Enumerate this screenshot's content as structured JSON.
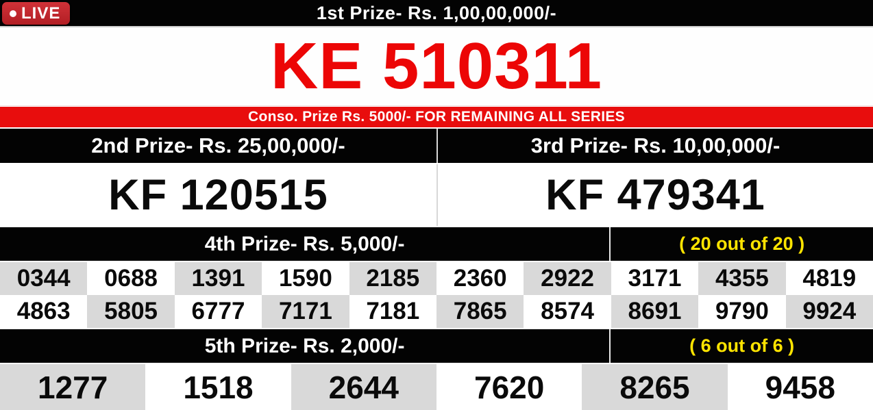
{
  "colors": {
    "black": "#030303",
    "accent_red": "#e80d0d",
    "live_red": "#c5282e",
    "prize_red": "#ec0606",
    "yellow": "#ffe400",
    "cell_gray": "#d9d9d9"
  },
  "live_badge": {
    "label": "LIVE"
  },
  "first_prize": {
    "title": "1st Prize- Rs. 1,00,00,000/-",
    "number": "KE 510311"
  },
  "consolation": {
    "text": "Conso. Prize Rs. 5000/- FOR REMAINING ALL SERIES"
  },
  "second_prize": {
    "title": "2nd Prize- Rs. 25,00,000/-",
    "number": "KF 120515"
  },
  "third_prize": {
    "title": "3rd Prize- Rs. 10,00,000/-",
    "number": "KF 479341"
  },
  "fourth_prize": {
    "title": "4th Prize- Rs. 5,000/-",
    "count": "( 20 out of 20 )",
    "columns": 10,
    "numbers": [
      "0344",
      "0688",
      "1391",
      "1590",
      "2185",
      "2360",
      "2922",
      "3171",
      "4355",
      "4819",
      "4863",
      "5805",
      "6777",
      "7171",
      "7181",
      "7865",
      "8574",
      "8691",
      "9790",
      "9924"
    ]
  },
  "fifth_prize": {
    "title": "5th Prize- Rs. 2,000/-",
    "count": "( 6 out of 6 )",
    "columns": 6,
    "numbers": [
      "1277",
      "1518",
      "2644",
      "7620",
      "8265",
      "9458"
    ]
  }
}
